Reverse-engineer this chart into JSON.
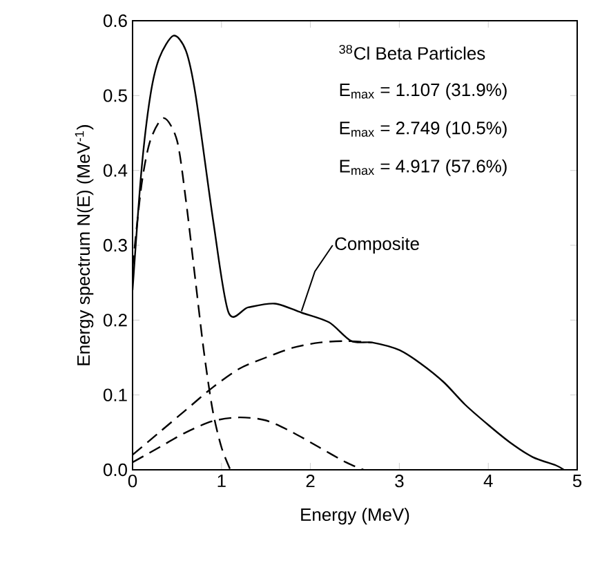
{
  "chart_data": {
    "type": "line",
    "xlabel": "Energy (MeV)",
    "ylabel": "Energy spectrum N(E) (MeV$^{-1}$)",
    "xlim": [
      0,
      5
    ],
    "ylim": [
      0,
      0.6
    ],
    "xticks": [
      0,
      1,
      2,
      3,
      4,
      5
    ],
    "yticks": [
      {
        "value": 0,
        "label": "0.0"
      },
      0.1,
      0.2,
      0.3,
      0.4,
      0.5,
      0.6
    ],
    "annotations": [
      "$^{38}$Cl Beta Particles",
      "E$_{max}$ = 1.107 (31.9%)",
      "E$_{max}$ = 2.749 (10.5%)",
      "E$_{max}$ = 4.917 (57.6%)"
    ],
    "legend": false,
    "series": [
      {
        "name": "Composite",
        "color": "#000000",
        "line_style": "solid",
        "x": [
          0,
          0.1,
          0.2,
          0.3,
          0.46,
          0.6,
          0.71,
          0.91,
          1.08,
          1.3,
          1.6,
          1.9,
          2.21,
          2.46,
          2.7,
          3.0,
          3.24,
          3.5,
          3.74,
          4.0,
          4.24,
          4.5,
          4.76,
          4.85
        ],
        "values": [
          0.24,
          0.4,
          0.5,
          0.55,
          0.58,
          0.56,
          0.5,
          0.33,
          0.21,
          0.217,
          0.222,
          0.21,
          0.197,
          0.172,
          0.17,
          0.16,
          0.142,
          0.117,
          0.087,
          0.06,
          0.037,
          0.017,
          0.006,
          0
        ]
      },
      {
        "color": "#000000",
        "line_style": "dashed",
        "x": [
          0,
          0.1,
          0.2,
          0.35,
          0.5,
          0.6,
          0.7,
          0.8,
          0.9,
          1.0,
          1.1
        ],
        "values": [
          0.27,
          0.38,
          0.44,
          0.47,
          0.44,
          0.36,
          0.26,
          0.16,
          0.08,
          0.03,
          0
        ]
      },
      {
        "color": "#000000",
        "line_style": "dashed",
        "x": [
          0,
          0.3,
          0.6,
          0.9,
          1.2,
          1.5,
          1.8,
          2.1,
          2.4,
          2.6
        ],
        "values": [
          0.01,
          0.03,
          0.05,
          0.065,
          0.07,
          0.066,
          0.05,
          0.03,
          0.01,
          0
        ]
      },
      {
        "color": "#000000",
        "line_style": "dashed",
        "x": [
          0,
          0.3,
          0.6,
          0.9,
          1.2,
          1.5,
          1.8,
          2.1,
          2.4,
          2.7
        ],
        "values": [
          0.02,
          0.05,
          0.08,
          0.11,
          0.135,
          0.15,
          0.163,
          0.17,
          0.172,
          0.17
        ]
      }
    ]
  }
}
